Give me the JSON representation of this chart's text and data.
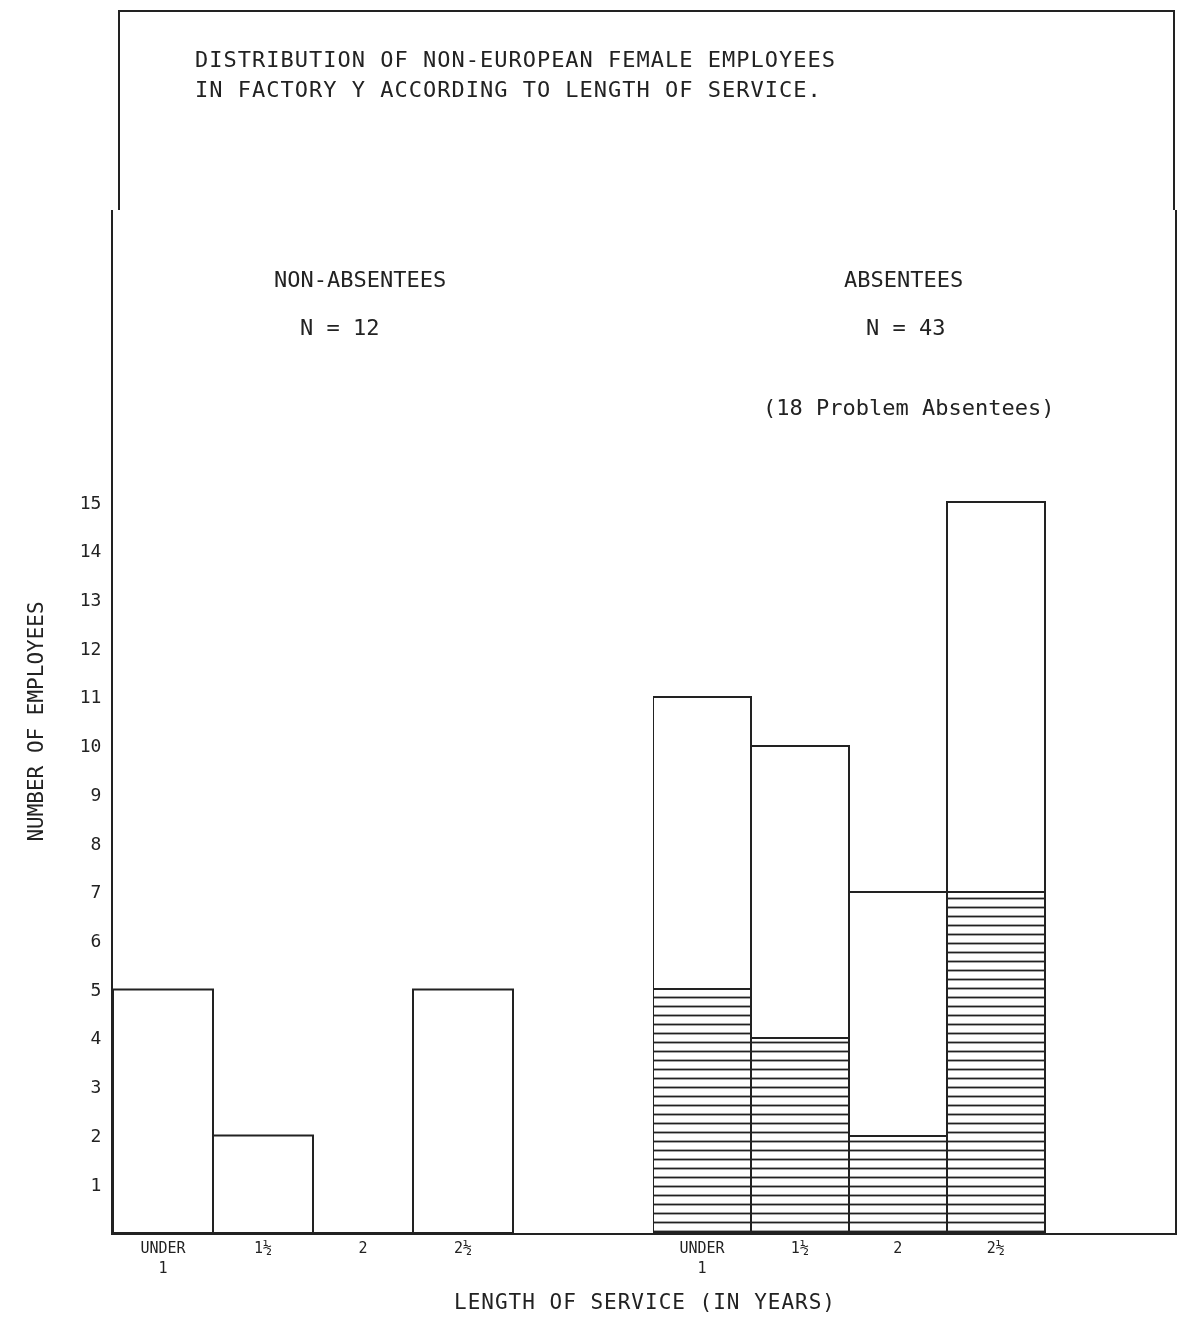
{
  "chart_data": [
    {
      "type": "bar",
      "title": "DISTRIBUTION OF NON-EUROPEAN FEMALE EMPLOYEES\nIN FACTORY Y ACCORDING TO LENGTH OF SERVICE.",
      "subtitle": "NON-ABSENTEES",
      "annotations": [
        "N = 12"
      ],
      "xlabel": "LENGTH OF SERVICE (IN YEARS)",
      "ylabel": "NUMBER OF EMPLOYEES",
      "categories": [
        "UNDER\n1",
        "1½",
        "2",
        "2½"
      ],
      "values": [
        5,
        2,
        0,
        5
      ],
      "color": "#222222",
      "ylim": [
        0,
        21
      ],
      "yticks": [
        1,
        2,
        3,
        4,
        5,
        6,
        7,
        8,
        9,
        10,
        11,
        12,
        13,
        14,
        15
      ]
    },
    {
      "type": "bar",
      "subtitle": "ABSENTEES",
      "annotations": [
        "N = 43",
        "(18 Problem Absentees)"
      ],
      "categories": [
        "UNDER\n1",
        "1½",
        "2",
        "2½"
      ],
      "stacked": true,
      "series": [
        {
          "color": "#222222",
          "values": [
            5,
            4,
            2,
            7
          ]
        },
        {
          "color": "#222222",
          "values": [
            6,
            6,
            5,
            8
          ]
        }
      ],
      "ylim": [
        0,
        21
      ],
      "yticks": [
        1,
        2,
        3,
        4,
        5,
        6,
        7,
        8,
        9,
        10,
        11,
        12,
        13,
        14,
        15
      ],
      "tick_labels": "x"
    }
  ]
}
